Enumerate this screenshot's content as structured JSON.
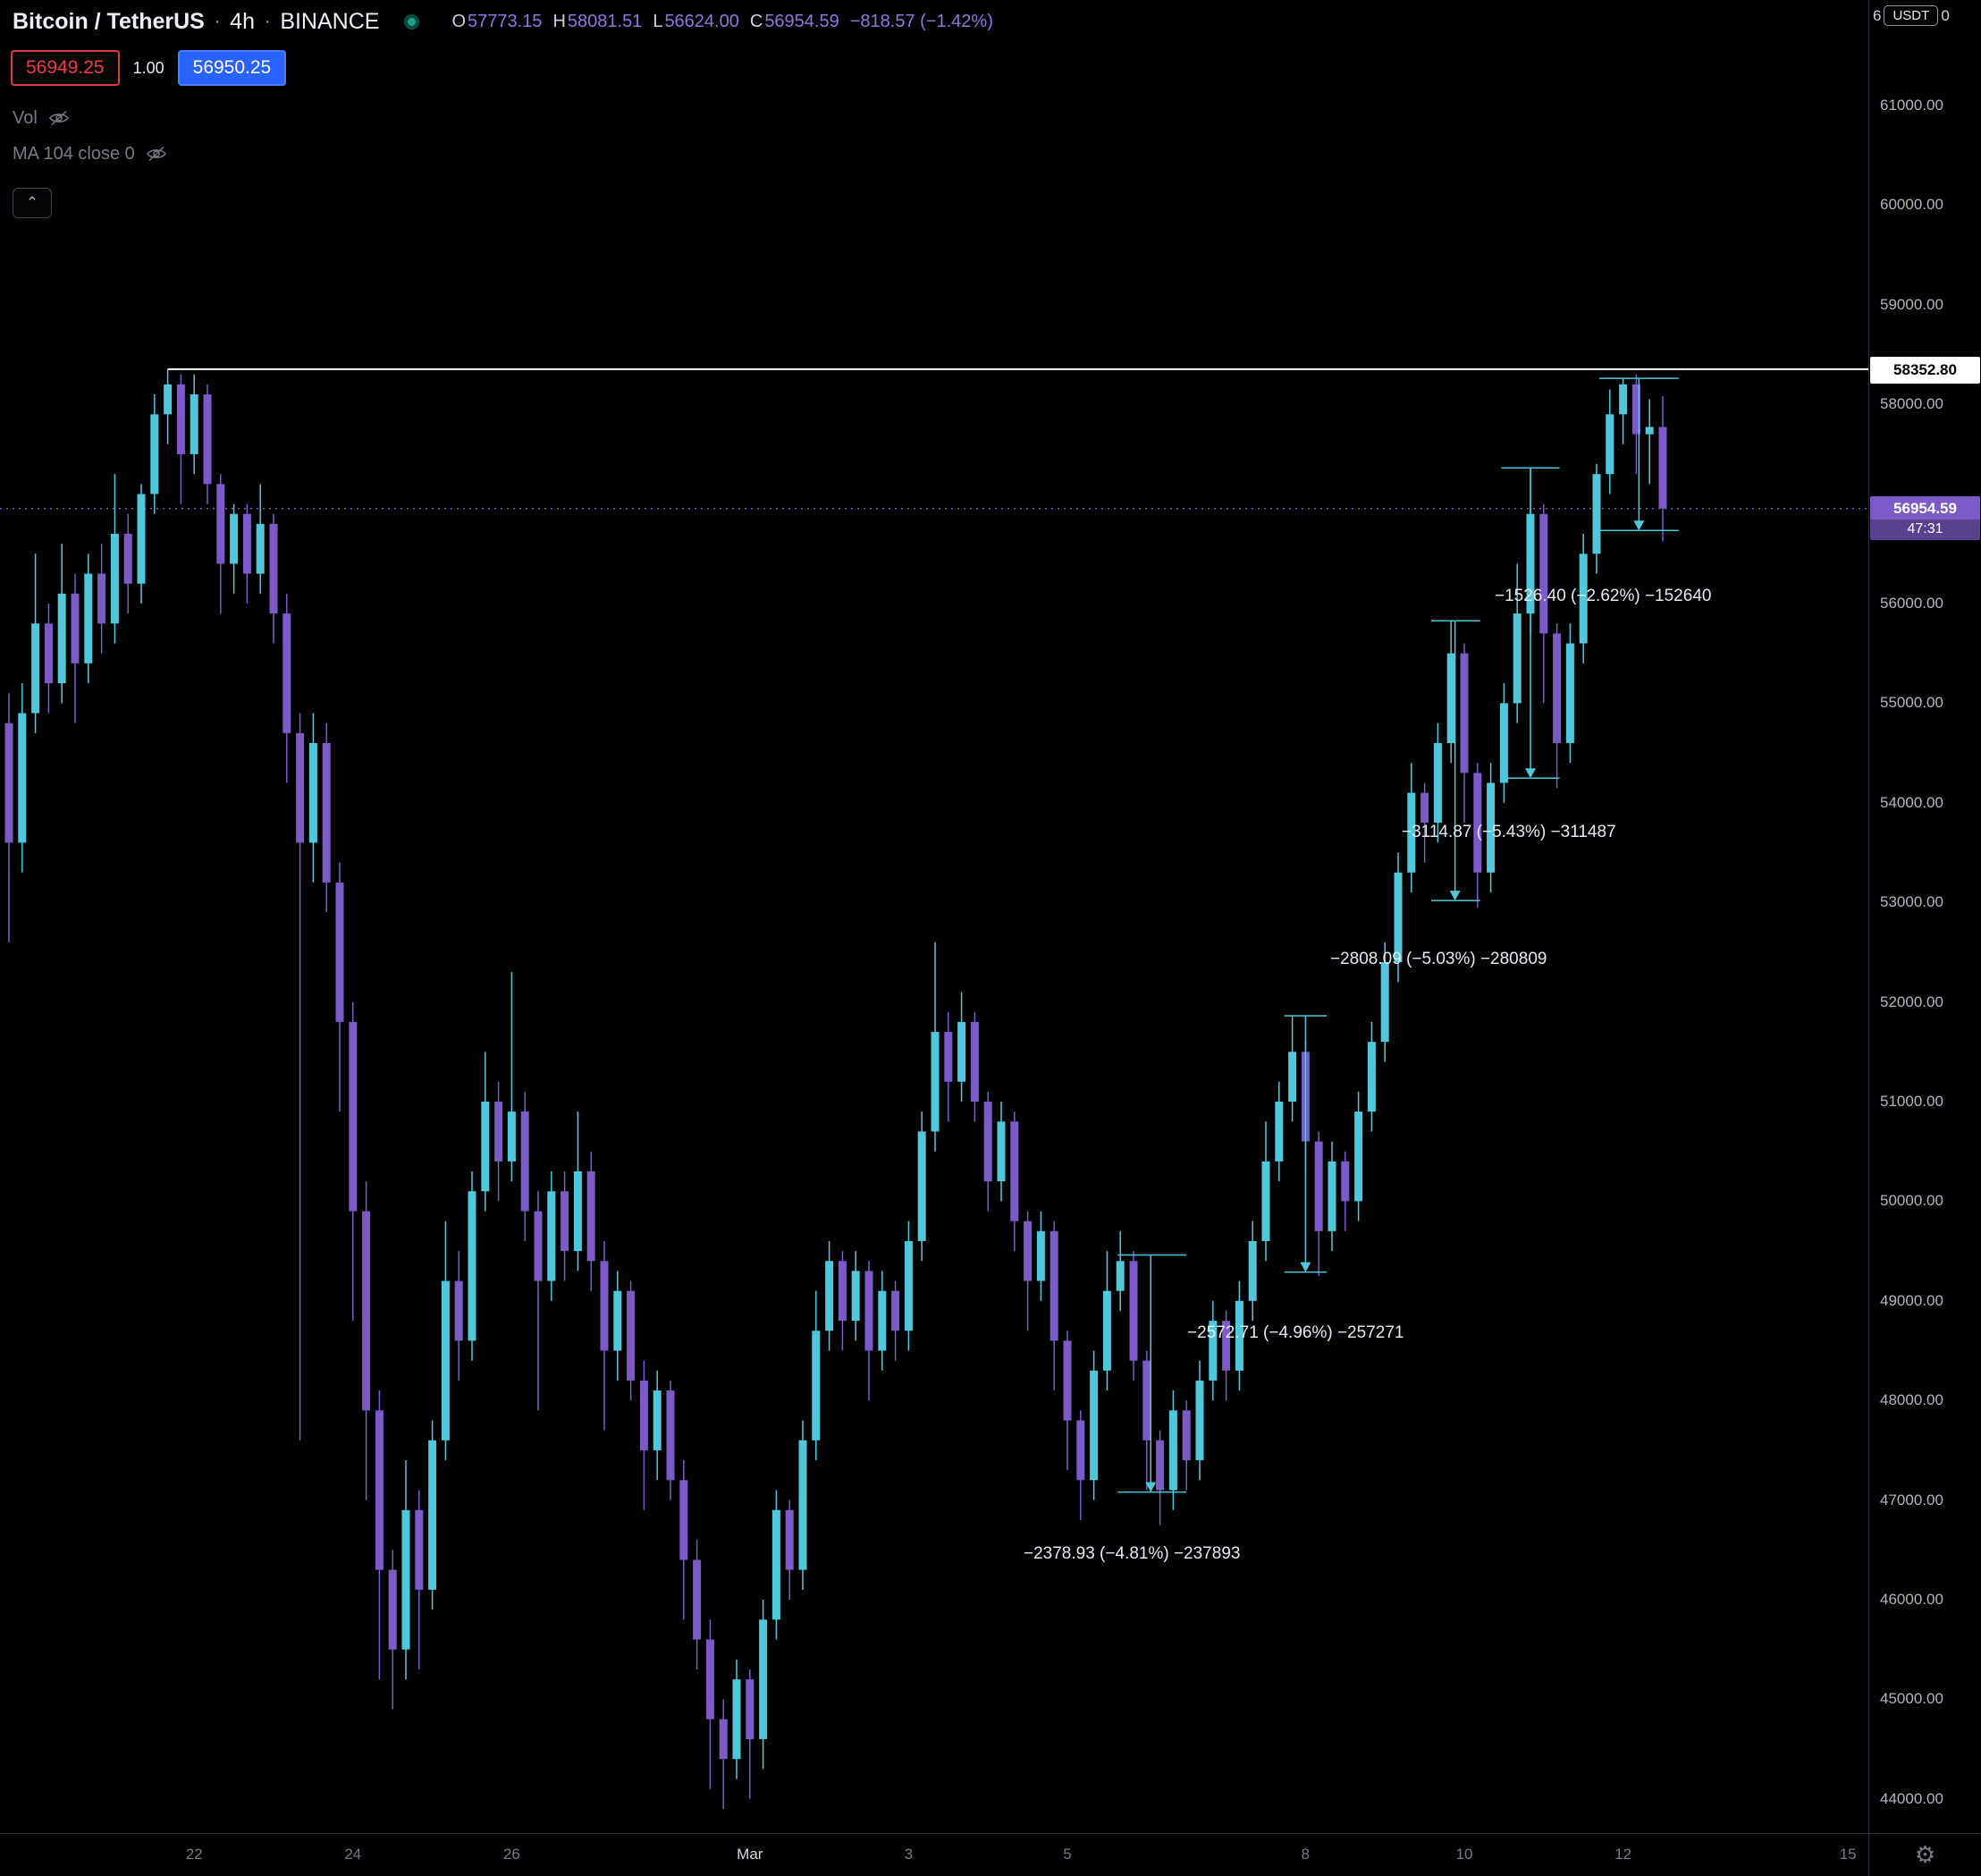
{
  "header": {
    "symbol": "Bitcoin / TetherUS",
    "separator": "·",
    "interval": "4h",
    "exchange": "BINANCE",
    "ohlc": {
      "o_label": "O",
      "o": "57773.15",
      "h_label": "H",
      "h": "58081.51",
      "l_label": "L",
      "l": "56624.00",
      "c_label": "C",
      "c": "56954.59",
      "change": "−818.57 (−1.42%)"
    },
    "sell_price": "56949.25",
    "spread": "1.00",
    "buy_price": "56950.25",
    "legend": [
      {
        "label": "Vol"
      },
      {
        "label": "MA 104 close 0"
      }
    ]
  },
  "icons": {
    "gear": "⚙",
    "chevron_up": "⌃"
  },
  "axis": {
    "unit_button": "USDT",
    "top_partial_left": "6",
    "top_partial_right": "0",
    "price_labels": [
      "61000.00",
      "60000.00",
      "59000.00",
      "58000.00",
      "56000.00",
      "55000.00",
      "54000.00",
      "53000.00",
      "52000.00",
      "51000.00",
      "50000.00",
      "49000.00",
      "48000.00",
      "47000.00",
      "46000.00",
      "45000.00",
      "44000.00"
    ],
    "time_labels": [
      {
        "text": "22",
        "index": 14
      },
      {
        "text": "24",
        "index": 26
      },
      {
        "text": "26",
        "index": 38
      },
      {
        "text": "Mar",
        "index": 56
      },
      {
        "text": "3",
        "index": 68
      },
      {
        "text": "5",
        "index": 80
      },
      {
        "text": "8",
        "index": 98
      },
      {
        "text": "10",
        "index": 110
      },
      {
        "text": "12",
        "index": 122
      },
      {
        "text": "15",
        "index": 139
      }
    ],
    "price_tag_white": {
      "text": "58352.80",
      "price": 58352.8
    },
    "price_tag_current": {
      "text": "56954.59",
      "price": 56954.59,
      "countdown": "47:31"
    }
  },
  "chart_data": {
    "type": "candlestick",
    "title": "Bitcoin / TetherUS · 4h · BINANCE",
    "interval": "4h",
    "price_range_visible": [
      43657,
      62059
    ],
    "colors": {
      "up": "#4fc8dc",
      "down": "#7c5ac8",
      "tool": "#4fc8dc",
      "ray": "#ffffff"
    },
    "price_line": {
      "price": 56954.59
    },
    "horizontal_ray": {
      "price": 58352.8,
      "start_index": 12,
      "color": "#ffffff"
    },
    "candles": [
      [
        54800,
        55100,
        52600,
        53600
      ],
      [
        53600,
        55200,
        53300,
        54900
      ],
      [
        54900,
        56500,
        54700,
        55800
      ],
      [
        55800,
        56000,
        54900,
        55200
      ],
      [
        55200,
        56600,
        55000,
        56100
      ],
      [
        56100,
        56300,
        54800,
        55400
      ],
      [
        55400,
        56500,
        55200,
        56300
      ],
      [
        56300,
        56600,
        55500,
        55800
      ],
      [
        55800,
        57300,
        55600,
        56700
      ],
      [
        56700,
        56900,
        55900,
        56200
      ],
      [
        56200,
        57200,
        56000,
        57100
      ],
      [
        57100,
        58100,
        56900,
        57900
      ],
      [
        57900,
        58352.8,
        57600,
        58200
      ],
      [
        58200,
        58300,
        57000,
        57500
      ],
      [
        57500,
        58300,
        57300,
        58100
      ],
      [
        58100,
        58200,
        57000,
        57200
      ],
      [
        57200,
        57300,
        55900,
        56400
      ],
      [
        56400,
        57000,
        56100,
        56900
      ],
      [
        56900,
        57000,
        56000,
        56300
      ],
      [
        56300,
        57200,
        56100,
        56800
      ],
      [
        56800,
        56900,
        55600,
        55900
      ],
      [
        55900,
        56100,
        54200,
        54700
      ],
      [
        54700,
        54900,
        47600,
        53600
      ],
      [
        53600,
        54900,
        53200,
        54600
      ],
      [
        54600,
        54800,
        52900,
        53200
      ],
      [
        53200,
        53400,
        50900,
        51800
      ],
      [
        51800,
        52000,
        48800,
        49900
      ],
      [
        49900,
        50200,
        47000,
        47900
      ],
      [
        47900,
        48100,
        45200,
        46300
      ],
      [
        46300,
        46500,
        44900,
        45500
      ],
      [
        45500,
        47400,
        45200,
        46900
      ],
      [
        46900,
        47100,
        45300,
        46100
      ],
      [
        46100,
        47800,
        45900,
        47600
      ],
      [
        47600,
        49800,
        47400,
        49200
      ],
      [
        49200,
        49500,
        48200,
        48600
      ],
      [
        48600,
        50300,
        48400,
        50100
      ],
      [
        50100,
        51500,
        49900,
        51000
      ],
      [
        51000,
        51200,
        50000,
        50400
      ],
      [
        50400,
        52300,
        50200,
        50900
      ],
      [
        50900,
        51100,
        49600,
        49900
      ],
      [
        49900,
        50100,
        47900,
        49200
      ],
      [
        49200,
        50300,
        49000,
        50100
      ],
      [
        50100,
        50300,
        49200,
        49500
      ],
      [
        49500,
        50900,
        49300,
        50300
      ],
      [
        50300,
        50500,
        49100,
        49400
      ],
      [
        49400,
        49600,
        47700,
        48500
      ],
      [
        48500,
        49300,
        48200,
        49100
      ],
      [
        49100,
        49200,
        48000,
        48200
      ],
      [
        48200,
        48400,
        46900,
        47500
      ],
      [
        47500,
        48300,
        47200,
        48100
      ],
      [
        48100,
        48200,
        47000,
        47200
      ],
      [
        47200,
        47400,
        45800,
        46400
      ],
      [
        46400,
        46600,
        45300,
        45600
      ],
      [
        45600,
        45800,
        44100,
        44800
      ],
      [
        44800,
        45000,
        43900,
        44400
      ],
      [
        44400,
        45400,
        44200,
        45200
      ],
      [
        45200,
        45300,
        44000,
        44600
      ],
      [
        44600,
        46000,
        44300,
        45800
      ],
      [
        45800,
        47100,
        45600,
        46900
      ],
      [
        46900,
        47000,
        46000,
        46300
      ],
      [
        46300,
        47800,
        46100,
        47600
      ],
      [
        47600,
        49100,
        47400,
        48700
      ],
      [
        48700,
        49600,
        48500,
        49400
      ],
      [
        49400,
        49500,
        48500,
        48800
      ],
      [
        48800,
        49500,
        48600,
        49300
      ],
      [
        49300,
        49400,
        48000,
        48500
      ],
      [
        48500,
        49300,
        48300,
        49100
      ],
      [
        49100,
        49200,
        48400,
        48700
      ],
      [
        48700,
        49800,
        48500,
        49600
      ],
      [
        49600,
        50900,
        49400,
        50700
      ],
      [
        50700,
        52600,
        50500,
        51700
      ],
      [
        51700,
        51900,
        50800,
        51200
      ],
      [
        51200,
        52100,
        51000,
        51800
      ],
      [
        51800,
        51900,
        50800,
        51000
      ],
      [
        51000,
        51100,
        49900,
        50200
      ],
      [
        50200,
        51000,
        50000,
        50800
      ],
      [
        50800,
        50900,
        49500,
        49800
      ],
      [
        49800,
        49900,
        48700,
        49200
      ],
      [
        49200,
        49900,
        49000,
        49700
      ],
      [
        49700,
        49800,
        48100,
        48600
      ],
      [
        48600,
        48700,
        47300,
        47800
      ],
      [
        47800,
        47900,
        46800,
        47200
      ],
      [
        47200,
        48500,
        47000,
        48300
      ],
      [
        48300,
        49500,
        48100,
        49100
      ],
      [
        49100,
        49700,
        48900,
        49400
      ],
      [
        49400,
        49500,
        48200,
        48400
      ],
      [
        48400,
        48500,
        47100,
        47600
      ],
      [
        47600,
        47700,
        46750,
        47100
      ],
      [
        47100,
        48100,
        46900,
        47900
      ],
      [
        47900,
        48000,
        47100,
        47400
      ],
      [
        47400,
        48400,
        47200,
        48200
      ],
      [
        48200,
        49000,
        48000,
        48800
      ],
      [
        48800,
        48900,
        48000,
        48300
      ],
      [
        48300,
        49200,
        48100,
        49000
      ],
      [
        49000,
        49800,
        48800,
        49600
      ],
      [
        49600,
        50800,
        49400,
        50400
      ],
      [
        50400,
        51200,
        50200,
        51000
      ],
      [
        51000,
        51862,
        50800,
        51500
      ],
      [
        51500,
        51600,
        50300,
        50600
      ],
      [
        50600,
        50700,
        49250,
        49700
      ],
      [
        49700,
        50600,
        49500,
        50400
      ],
      [
        50400,
        50500,
        49700,
        50000
      ],
      [
        50000,
        51100,
        49800,
        50900
      ],
      [
        50900,
        51800,
        50700,
        51600
      ],
      [
        51600,
        52600,
        51400,
        52400
      ],
      [
        52400,
        53500,
        52200,
        53300
      ],
      [
        53300,
        54400,
        53100,
        54100
      ],
      [
        54100,
        54200,
        53400,
        53800
      ],
      [
        53800,
        54800,
        53600,
        54600
      ],
      [
        54600,
        55827,
        54400,
        55500
      ],
      [
        55500,
        55600,
        53800,
        54300
      ],
      [
        54300,
        54400,
        52950,
        53300
      ],
      [
        53300,
        54400,
        53100,
        54200
      ],
      [
        54200,
        55200,
        54000,
        55000
      ],
      [
        55000,
        56400,
        54800,
        55900
      ],
      [
        55900,
        57362,
        55700,
        56900
      ],
      [
        56900,
        57000,
        55000,
        55700
      ],
      [
        55700,
        55800,
        54150,
        54600
      ],
      [
        54600,
        55800,
        54400,
        55600
      ],
      [
        55600,
        56700,
        55400,
        56500
      ],
      [
        56500,
        57400,
        56300,
        57300
      ],
      [
        57300,
        58150,
        57100,
        57900
      ],
      [
        57900,
        58261,
        57600,
        58200
      ],
      [
        58200,
        58300,
        57300,
        57700
      ],
      [
        57700,
        58050,
        57200,
        57773
      ],
      [
        57773.15,
        58081.51,
        56624.0,
        56954.59
      ]
    ],
    "measurements": [
      {
        "label": "−2378.93 (−4.81%) −237893",
        "from_price": 49460,
        "to_price": 47081,
        "x1": 83.8,
        "x2": 89.0,
        "arrow_x": 86.3,
        "label_x": 1145,
        "label_y": 1743
      },
      {
        "label": "−2572.71 (−4.96%) −257271",
        "from_price": 51862,
        "to_price": 49289,
        "x1": 96.4,
        "x2": 99.6,
        "arrow_x": 98.0,
        "label_x": 1328,
        "label_y": 1496
      },
      {
        "label": "−2808.09 (−5.03%) −280809",
        "from_price": 55827,
        "to_price": 53019,
        "x1": 107.5,
        "x2": 111.2,
        "arrow_x": 109.3,
        "label_x": 1488,
        "label_y": 1078
      },
      {
        "label": "−3114.87 (−5.43%) −311487",
        "from_price": 57362,
        "to_price": 54247,
        "x1": 112.8,
        "x2": 117.2,
        "arrow_x": 115.0,
        "label_x": 1568,
        "label_y": 936
      },
      {
        "label": "−1526.40 (−2.62%) −152640",
        "from_price": 58261,
        "to_price": 56734,
        "x1": 120.2,
        "x2": 126.2,
        "arrow_x": 123.2,
        "label_x": 1672,
        "label_y": 672
      }
    ]
  }
}
